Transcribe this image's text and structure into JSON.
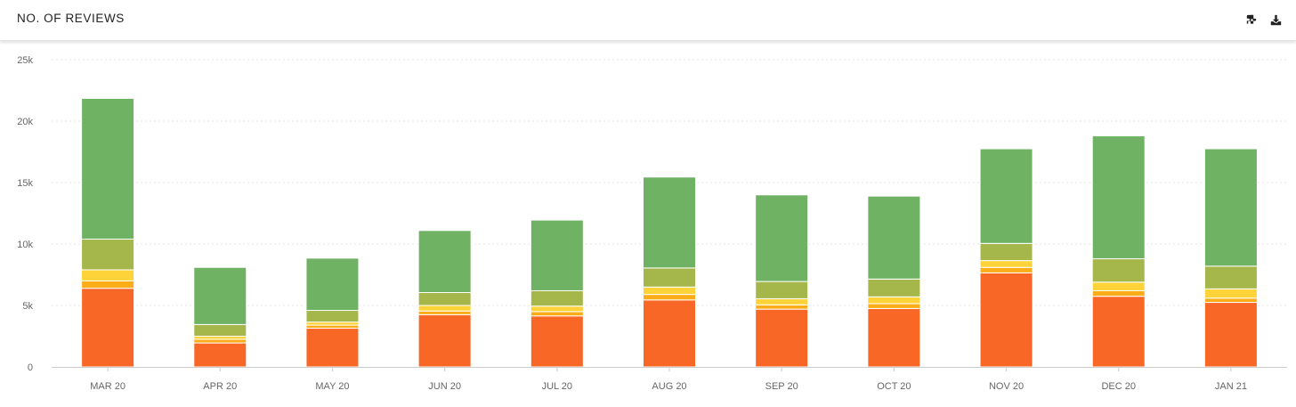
{
  "header": {
    "title": "NO. OF REVIEWS",
    "tools": [
      {
        "name": "settings",
        "icon": "puzzle-settings-icon"
      },
      {
        "name": "download",
        "icon": "download-icon"
      }
    ]
  },
  "chart_data": {
    "type": "bar",
    "stacked": true,
    "title": "NO. OF REVIEWS",
    "xlabel": "",
    "ylabel": "",
    "ylim": [
      0,
      25000
    ],
    "yticks": [
      0,
      5000,
      10000,
      15000,
      20000,
      25000
    ],
    "ytick_labels": [
      "0",
      "5k",
      "10k",
      "15k",
      "20k",
      "25k"
    ],
    "grid": true,
    "legend": "none",
    "categories": [
      "MAR 20",
      "APR 20",
      "MAY 20",
      "JUN 20",
      "JUL 20",
      "AUG 20",
      "SEP 20",
      "OCT 20",
      "NOV 20",
      "DEC 20",
      "JAN 21"
    ],
    "series": [
      {
        "color": "#f96726",
        "values": [
          6400,
          1950,
          3150,
          4250,
          4150,
          5450,
          4700,
          4750,
          7650,
          5750,
          5250
        ]
      },
      {
        "color": "#fbad19",
        "values": [
          600,
          300,
          250,
          300,
          350,
          450,
          350,
          400,
          450,
          450,
          350
        ]
      },
      {
        "color": "#fdd339",
        "values": [
          900,
          250,
          250,
          450,
          450,
          600,
          500,
          550,
          550,
          700,
          750
        ]
      },
      {
        "color": "#a5b64a",
        "values": [
          2500,
          950,
          950,
          1050,
          1250,
          1550,
          1400,
          1450,
          1400,
          1900,
          1850
        ]
      },
      {
        "color": "#6fb264",
        "values": [
          11450,
          4650,
          4250,
          5050,
          5750,
          7400,
          7050,
          6750,
          7700,
          10000,
          9550
        ]
      }
    ]
  }
}
